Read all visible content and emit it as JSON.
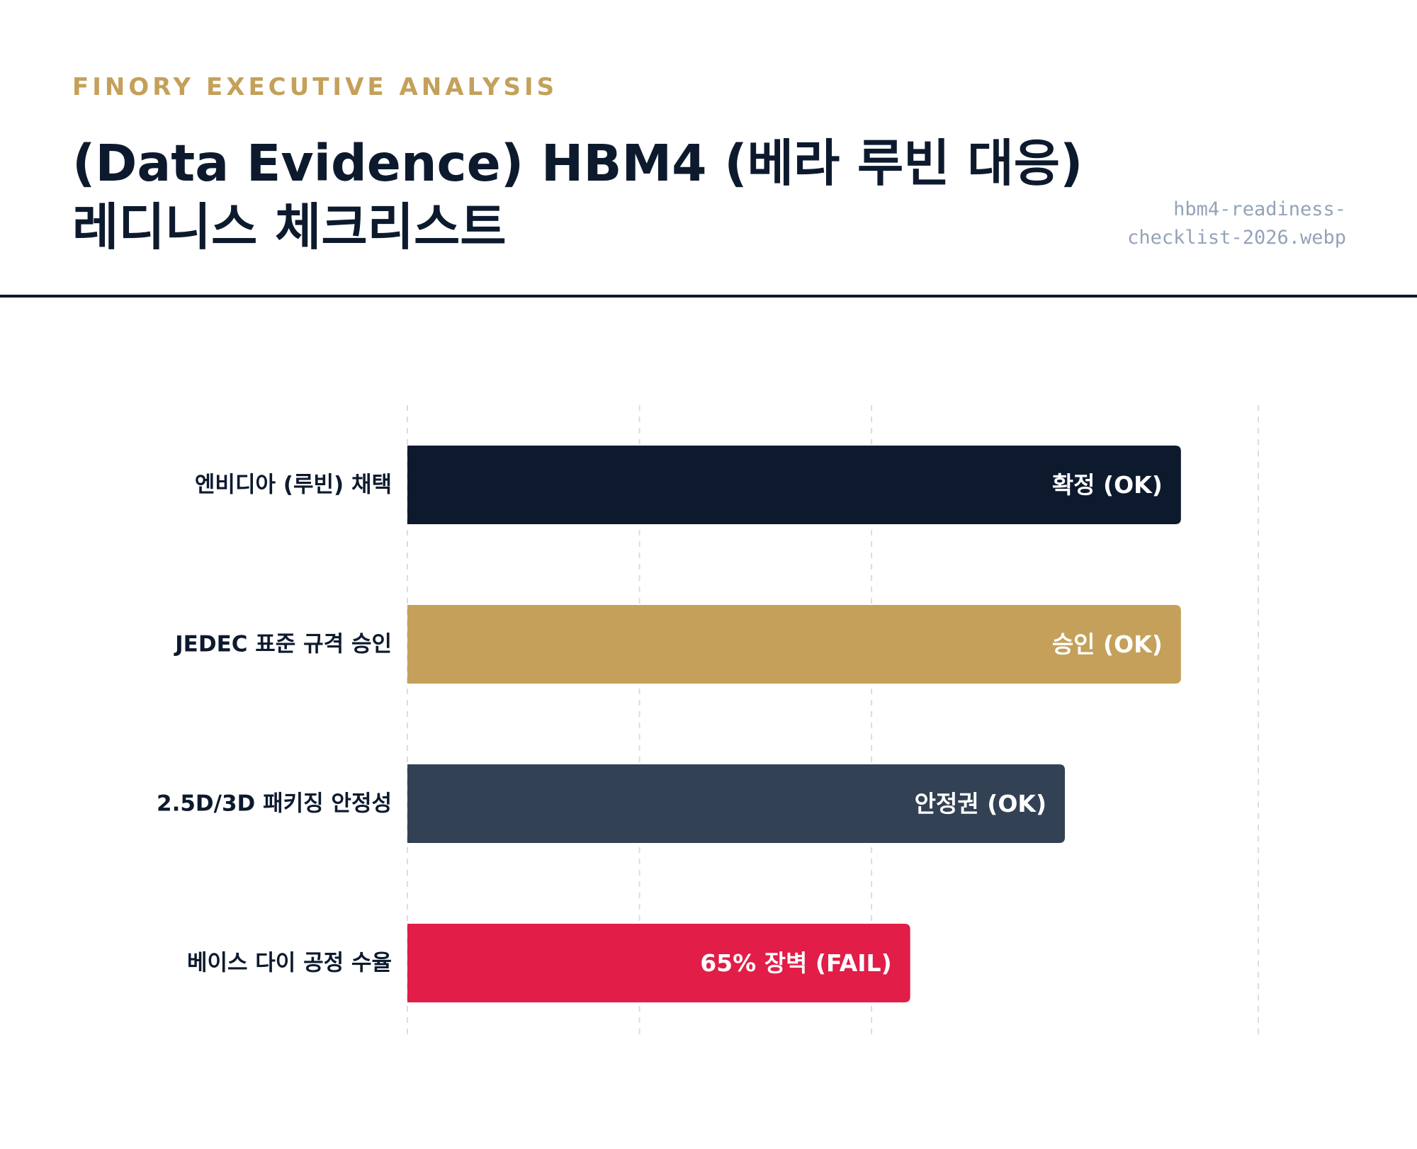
{
  "header": {
    "kicker": "FINORY EXECUTIVE ANALYSIS",
    "title_line1": "(Data Evidence) HBM4 (베라 루빈 대응)",
    "title_line2": "레디니스 체크리스트",
    "filename_line1": "hbm4-readiness-",
    "filename_line2": "checklist-2026.webp"
  },
  "colors": {
    "navy": "#0d1a2e",
    "gold": "#c4a05a",
    "slate": "#334155",
    "red": "#e11d48",
    "grid": "#dddddd",
    "muted": "#94a3b8"
  },
  "chart_data": {
    "type": "bar",
    "orientation": "horizontal",
    "categories": [
      "엔비디아 (루빈) 채택",
      "JEDEC 표준 규격 승인",
      "2.5D/3D 패키징 안정성",
      "베이스 다이 공정 수율"
    ],
    "values": [
      100,
      100,
      85,
      65
    ],
    "data_labels": [
      "확정 (OK)",
      "승인 (OK)",
      "안정권 (OK)",
      "65% 장벽 (FAIL)"
    ],
    "bar_colors": [
      "#0d1a2e",
      "#c4a05a",
      "#334155",
      "#e11d48"
    ],
    "xlim": [
      0,
      110
    ],
    "gridlines_at": [
      0,
      30,
      60,
      110
    ],
    "grid": true,
    "title": "",
    "xlabel": "",
    "ylabel": ""
  }
}
